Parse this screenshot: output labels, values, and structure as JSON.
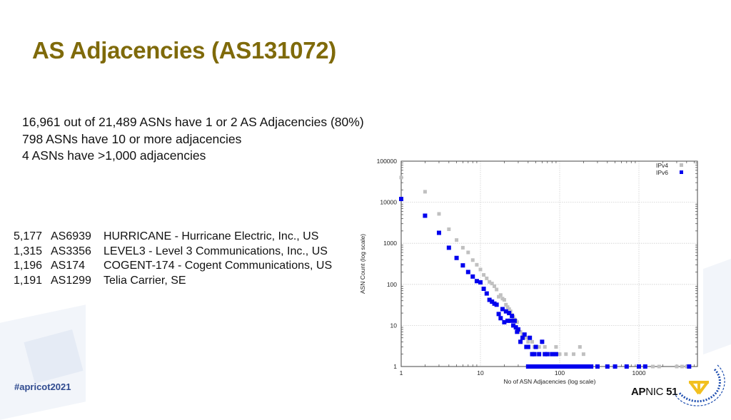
{
  "slide": {
    "title": "AS Adjacencies (AS131072)",
    "summary": [
      "16,961 out of 21,489  ASNs have 1 or 2 AS Adjacencies (80%)",
      "798 ASNs have 10 or more adjacencies",
      "4 ASNs have >1,000 adjacencies"
    ],
    "top_asns": [
      {
        "count": "5,177",
        "asn": "AS6939",
        "name": "HURRICANE - Hurricane Electric, Inc., US"
      },
      {
        "count": "1,315",
        "asn": "AS3356",
        "name": "LEVEL3 - Level 3 Communications, Inc., US"
      },
      {
        "count": "1,196",
        "asn": "AS174",
        "name": "COGENT-174 - Cogent Communications, US"
      },
      {
        "count": "1,191",
        "asn": "AS1299",
        "name": "Telia Carrier, SE"
      }
    ],
    "footer": {
      "hashtag": "#apricot2021",
      "event_bold": "AP",
      "event_rest": "NIC",
      "event_number": "51"
    }
  },
  "colors": {
    "title": "#7f6a0a",
    "ipv4": "#c0c0c0",
    "ipv6": "#0000ee",
    "grid": "#cccccc",
    "hashtag": "#2f4a8f",
    "logo_blue": "#1f4fb0",
    "logo_gold": "#f2c020"
  },
  "chart_data": {
    "type": "scatter",
    "title": "",
    "xlabel": "No of ASN Adjacencies (log scale)",
    "ylabel": "ASN Count (log scale)",
    "x_scale": "log",
    "y_scale": "log",
    "xlim": [
      1,
      4500
    ],
    "ylim": [
      1,
      100000
    ],
    "x_ticks": [
      "1",
      "10",
      "100",
      "1000"
    ],
    "y_ticks": [
      "100000",
      "10000",
      "1000",
      "100",
      "10",
      "1"
    ],
    "grid": true,
    "legend": {
      "position": "top-right",
      "entries": [
        "IPv4",
        "IPv6"
      ]
    },
    "series": [
      {
        "name": "IPv4",
        "marker": "x-square",
        "color": "#c0c0c0",
        "x": [
          1,
          2,
          3,
          4,
          5,
          6,
          7,
          8,
          9,
          10,
          11,
          12,
          13,
          14,
          15,
          16,
          17,
          18,
          19,
          20,
          21,
          22,
          23,
          24,
          25,
          26,
          27,
          28,
          29,
          30,
          32,
          34,
          36,
          38,
          40,
          42,
          45,
          48,
          50,
          55,
          60,
          65,
          70,
          80,
          90,
          100,
          120,
          150,
          180,
          200,
          1500,
          1800,
          3000,
          3500,
          4000
        ],
        "y": [
          40000,
          18000,
          5200,
          2200,
          1200,
          780,
          600,
          390,
          300,
          230,
          170,
          140,
          115,
          105,
          90,
          75,
          50,
          55,
          45,
          42,
          32,
          28,
          25,
          22,
          18,
          16,
          14,
          13,
          12,
          8,
          7,
          6,
          5,
          5,
          4,
          5,
          4,
          3,
          3,
          3,
          4,
          3,
          2,
          2,
          3,
          2,
          2,
          2,
          3,
          2,
          1,
          1,
          1,
          1,
          1
        ]
      },
      {
        "name": "IPv6",
        "marker": "square",
        "color": "#0000ee",
        "x": [
          1,
          2,
          3,
          4,
          5,
          6,
          7,
          8,
          9,
          10,
          11,
          12,
          13,
          14,
          15,
          16,
          17,
          18,
          19,
          20,
          21,
          22,
          23,
          24,
          25,
          26,
          27,
          28,
          29,
          30,
          32,
          34,
          36,
          38,
          40,
          42,
          45,
          48,
          50,
          55,
          60,
          65,
          70,
          80,
          90,
          100,
          120,
          150,
          180,
          200,
          250,
          300,
          400,
          500,
          700,
          1000,
          1200,
          4300
        ],
        "y": [
          12000,
          4700,
          1800,
          780,
          440,
          290,
          200,
          155,
          120,
          112,
          78,
          60,
          42,
          38,
          34,
          32,
          19,
          15,
          25,
          12,
          22,
          13,
          20,
          13,
          17,
          10,
          13,
          9,
          7,
          8,
          4,
          5,
          6,
          3,
          3,
          5,
          2,
          2,
          3,
          2,
          4,
          2,
          2,
          2,
          2,
          1,
          1,
          1,
          1,
          1,
          1,
          1,
          1,
          1,
          1,
          1,
          1,
          1
        ]
      }
    ]
  }
}
